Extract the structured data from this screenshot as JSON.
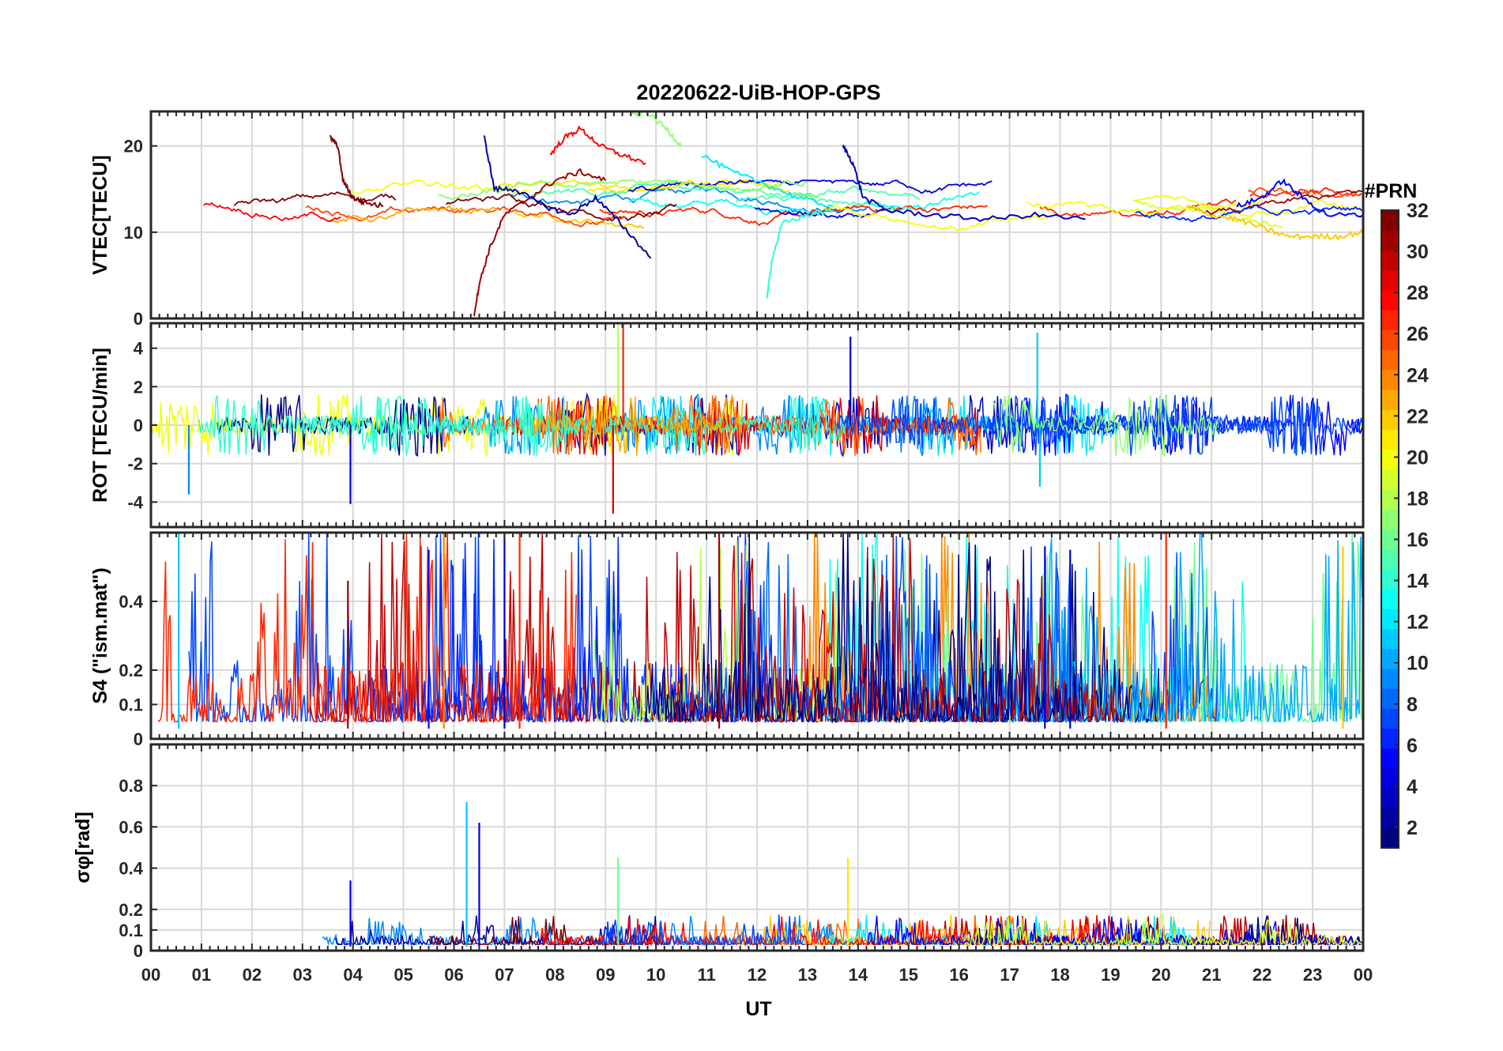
{
  "chart_data": {
    "title": "20220622-UiB-HOP-GPS",
    "type": "line",
    "xlabel": "UT",
    "x_ticks": [
      "00",
      "01",
      "02",
      "03",
      "04",
      "05",
      "06",
      "07",
      "08",
      "09",
      "10",
      "11",
      "12",
      "13",
      "14",
      "15",
      "16",
      "17",
      "18",
      "19",
      "20",
      "21",
      "22",
      "23",
      "00"
    ],
    "xlim_hours": [
      0,
      24
    ],
    "grid": true,
    "colorbar": {
      "label": "#PRN",
      "range": [
        1,
        32
      ],
      "ticks": [
        "2",
        "4",
        "6",
        "8",
        "10",
        "12",
        "14",
        "16",
        "18",
        "20",
        "22",
        "24",
        "26",
        "28",
        "30",
        "32"
      ],
      "colormap": "jet",
      "placement": "right"
    },
    "panels": [
      {
        "id": "vtec",
        "ylabel": "VTEC[TECU]",
        "ylim": [
          0,
          24
        ],
        "y_ticks": [
          0,
          10,
          20
        ],
        "series": [
          {
            "prn": 32,
            "x": [
              3.55,
              3.7,
              3.8,
              4.0,
              4.2,
              4.6
            ],
            "y": [
              21,
              20,
              16,
              14,
              13.5,
              13
            ]
          },
          {
            "prn": 31,
            "x": [
              6.4,
              6.5,
              6.7,
              7.0,
              7.5,
              8.0,
              8.5,
              9.0
            ],
            "y": [
              0.5,
              4,
              8,
              12,
              14,
              16,
              17,
              16
            ]
          },
          {
            "prn": 2,
            "x": [
              6.6,
              6.8,
              7.2,
              7.8,
              8.3,
              8.8,
              9.3,
              9.9
            ],
            "y": [
              21,
              15,
              15,
              13,
              12,
              14,
              11,
              7
            ]
          },
          {
            "prn": 28,
            "x": [
              7.9,
              8.2,
              8.5,
              8.9,
              9.3,
              9.8
            ],
            "y": [
              19,
              21,
              22,
              20,
              19,
              18
            ]
          },
          {
            "prn": 17,
            "x": [
              9.5,
              9.8,
              10.2,
              10.5
            ],
            "y": [
              23.5,
              24,
              22,
              20
            ]
          },
          {
            "prn": 12,
            "x": [
              10.9,
              11.5,
              12.2,
              12.8,
              13.5
            ],
            "y": [
              19,
              17,
              15.5,
              14,
              13
            ]
          },
          {
            "prn": 14,
            "x": [
              12.2,
              12.3,
              12.5,
              13.0,
              13.5
            ],
            "y": [
              2.5,
              7,
              11,
              12,
              12.5
            ]
          },
          {
            "prn": 3,
            "x": [
              13.7,
              13.9,
              14.1,
              14.6,
              15.5,
              16.5,
              17.5,
              18.5
            ],
            "y": [
              20,
              18,
              14,
              12.5,
              12,
              11.5,
              12,
              11.5
            ]
          },
          {
            "prn": 22,
            "x": [
              20.5,
              21.0,
              21.5,
              22.0,
              22.5,
              23.0,
              23.5,
              24.0
            ],
            "y": [
              13,
              12,
              11.5,
              10.5,
              9.5,
              9.5,
              9.5,
              10
            ]
          },
          {
            "prn": 5,
            "x": [
              21.5,
              22.0,
              22.4,
              22.8,
              23.3,
              24.0
            ],
            "y": [
              13,
              14,
              16,
              14,
              12,
              12
            ]
          }
        ]
      },
      {
        "id": "rot",
        "ylabel": "ROT [TECU/min]",
        "ylim": [
          -5.3,
          5.3
        ],
        "y_ticks": [
          -4,
          -2,
          0,
          2,
          4
        ],
        "peaks": [
          {
            "prn": 9,
            "x": 0.75,
            "y": -3.6
          },
          {
            "prn": 3,
            "x": 3.95,
            "y": -4.1
          },
          {
            "prn": 18,
            "x": 9.25,
            "y": 5.2
          },
          {
            "prn": 27,
            "x": 9.35,
            "y": 5.3
          },
          {
            "prn": 29,
            "x": 9.15,
            "y": -4.6
          },
          {
            "prn": 3,
            "x": 13.85,
            "y": 4.6
          },
          {
            "prn": 11,
            "x": 17.55,
            "y": 4.8
          },
          {
            "prn": 11,
            "x": 17.6,
            "y": -3.2
          }
        ]
      },
      {
        "id": "s4",
        "ylabel": "S4 (\"ism.mat\")",
        "ylim": [
          0,
          0.6
        ],
        "y_ticks": [
          0,
          0.1,
          0.2,
          0.4
        ],
        "peaks": [
          {
            "prn": 11,
            "x": 0.55,
            "y": 0.6
          },
          {
            "prn": 31,
            "x": 3.9,
            "y": 0.46
          },
          {
            "prn": 5,
            "x": 5.5,
            "y": 0.55
          },
          {
            "prn": 24,
            "x": 5.8,
            "y": 0.6
          },
          {
            "prn": 3,
            "x": 7.0,
            "y": 0.6
          },
          {
            "prn": 27,
            "x": 7.3,
            "y": 0.6
          },
          {
            "prn": 31,
            "x": 11.25,
            "y": 0.6
          },
          {
            "prn": 4,
            "x": 17.7,
            "y": 0.56
          },
          {
            "prn": 3,
            "x": 18.2,
            "y": 0.55
          },
          {
            "prn": 27,
            "x": 20.1,
            "y": 0.6
          },
          {
            "prn": 22,
            "x": 23.6,
            "y": 0.56
          }
        ]
      },
      {
        "id": "sigma",
        "ylabel": "σφ[rad]",
        "ylim": [
          0,
          1.0
        ],
        "y_ticks": [
          0,
          0.1,
          0.2,
          0.4,
          0.6,
          0.8
        ],
        "peaks": [
          {
            "prn": 4,
            "x": 3.95,
            "y": 0.34
          },
          {
            "prn": 11,
            "x": 6.25,
            "y": 0.72
          },
          {
            "prn": 4,
            "x": 6.5,
            "y": 0.62
          },
          {
            "prn": 16,
            "x": 9.25,
            "y": 0.45
          },
          {
            "prn": 21,
            "x": 13.8,
            "y": 0.45
          }
        ]
      }
    ]
  }
}
